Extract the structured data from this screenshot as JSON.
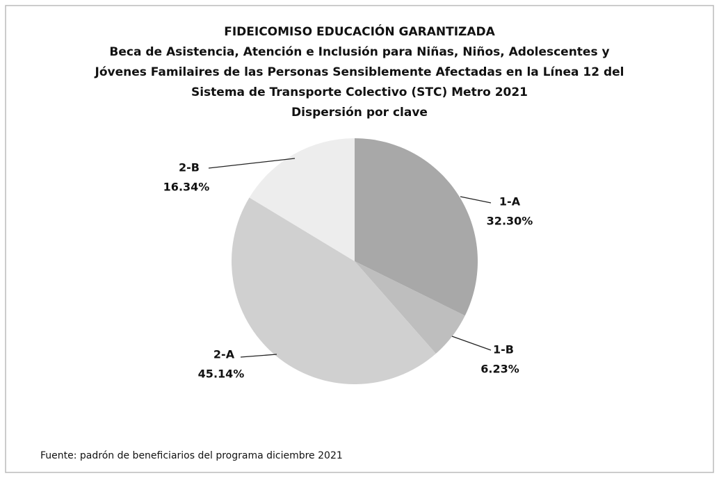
{
  "chart_data": {
    "type": "pie",
    "title": "FIDEICOMISO EDUCACIÓN GARANTIZADA",
    "subtitle": [
      "Beca de Asistencia, Atención e Inclusión para Niñas, Niños, Adolescentes y",
      "Jóvenes Familaires de las Personas Sensiblemente Afectadas en la Línea 12 del",
      "Sistema de Transporte Colectivo (STC) Metro 2021",
      "Dispersión por clave"
    ],
    "categories": [
      "1-A",
      "1-B",
      "2-A",
      "2-B"
    ],
    "values": [
      32.3,
      6.23,
      45.14,
      16.34
    ],
    "value_labels": [
      "32.30%",
      "6.23%",
      "45.14%",
      "16.34%"
    ],
    "colors": [
      "#a8a8a8",
      "#bebebe",
      "#d0d0d0",
      "#ededed"
    ],
    "source": "Fuente: padrón de beneficiarios del programa diciembre 2021"
  }
}
